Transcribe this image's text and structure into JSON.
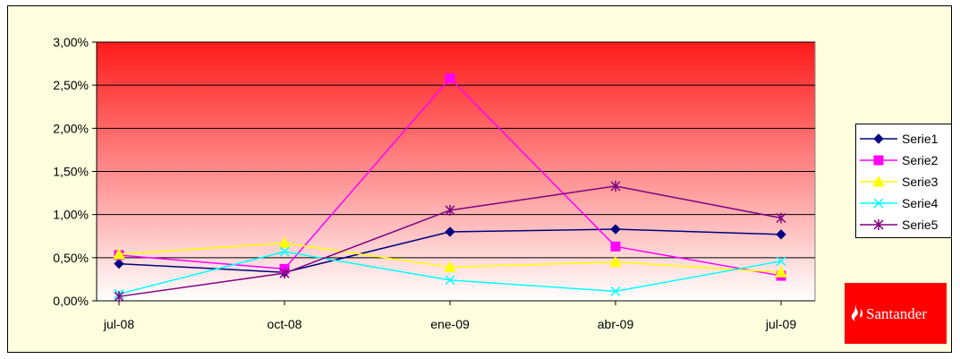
{
  "chart_data": {
    "type": "line",
    "categories": [
      "jul-08",
      "oct-08",
      "ene-09",
      "abr-09",
      "jul-09"
    ],
    "y_ticks": [
      "0,00%",
      "0,50%",
      "1,00%",
      "1,50%",
      "2,00%",
      "2,50%",
      "3,00%"
    ],
    "ylim": [
      0,
      3.0
    ],
    "grid": true,
    "legend_position": "right",
    "series": [
      {
        "name": "Serie1",
        "color": "#000080",
        "marker": "diamond",
        "values": [
          0.43,
          0.33,
          0.8,
          0.83,
          0.77
        ]
      },
      {
        "name": "Serie2",
        "color": "#ff00ff",
        "marker": "square",
        "values": [
          0.53,
          0.37,
          2.58,
          0.63,
          0.29
        ]
      },
      {
        "name": "Serie3",
        "color": "#ffff00",
        "marker": "triangle",
        "values": [
          0.54,
          0.67,
          0.39,
          0.45,
          0.33
        ]
      },
      {
        "name": "Serie4",
        "color": "#00ffff",
        "marker": "x",
        "values": [
          0.08,
          0.57,
          0.24,
          0.11,
          0.46
        ]
      },
      {
        "name": "Serie5",
        "color": "#800080",
        "marker": "star",
        "values": [
          0.05,
          0.32,
          1.05,
          1.33,
          0.96
        ]
      }
    ]
  },
  "logo": {
    "text": "Santander"
  }
}
